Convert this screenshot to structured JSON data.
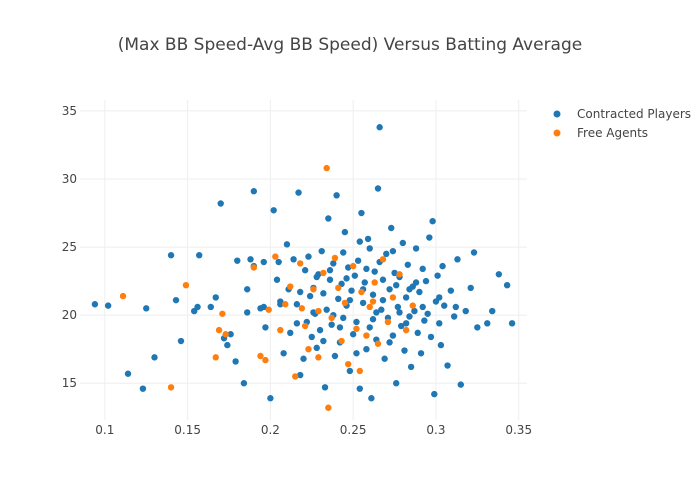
{
  "chart_data": {
    "type": "scatter",
    "title": "(Max BB Speed-Avg BB Speed) Versus Batting Average",
    "xlabel": "",
    "ylabel": "",
    "xlim": [
      0.085,
      0.355
    ],
    "ylim": [
      12.3,
      35.8
    ],
    "x_ticks": [
      0.1,
      0.15,
      0.2,
      0.25,
      0.3,
      0.35
    ],
    "x_tick_labels": [
      "0.1",
      "0.15",
      "0.2",
      "0.25",
      "0.3",
      "0.35"
    ],
    "y_ticks": [
      15,
      20,
      25,
      30,
      35
    ],
    "y_tick_labels": [
      "15",
      "20",
      "25",
      "30",
      "35"
    ],
    "grid": true,
    "legend_position": "top-right",
    "series": [
      {
        "name": "Contracted Players",
        "color": "#1f77b4",
        "points": [
          [
            0.094,
            20.8
          ],
          [
            0.102,
            20.7
          ],
          [
            0.114,
            15.7
          ],
          [
            0.123,
            14.6
          ],
          [
            0.125,
            20.5
          ],
          [
            0.13,
            16.9
          ],
          [
            0.14,
            24.4
          ],
          [
            0.143,
            21.1
          ],
          [
            0.146,
            18.1
          ],
          [
            0.154,
            20.3
          ],
          [
            0.156,
            20.6
          ],
          [
            0.157,
            24.4
          ],
          [
            0.164,
            20.6
          ],
          [
            0.167,
            21.3
          ],
          [
            0.17,
            28.2
          ],
          [
            0.172,
            18.3
          ],
          [
            0.174,
            17.8
          ],
          [
            0.176,
            18.6
          ],
          [
            0.179,
            16.6
          ],
          [
            0.18,
            24.0
          ],
          [
            0.184,
            15.0
          ],
          [
            0.186,
            20.2
          ],
          [
            0.188,
            24.1
          ],
          [
            0.19,
            29.1
          ],
          [
            0.19,
            23.6
          ],
          [
            0.194,
            20.5
          ],
          [
            0.196,
            23.9
          ],
          [
            0.197,
            19.1
          ],
          [
            0.2,
            13.9
          ],
          [
            0.202,
            27.7
          ],
          [
            0.204,
            22.6
          ],
          [
            0.205,
            23.9
          ],
          [
            0.206,
            20.8
          ],
          [
            0.208,
            17.2
          ],
          [
            0.21,
            25.2
          ],
          [
            0.211,
            21.9
          ],
          [
            0.212,
            18.7
          ],
          [
            0.214,
            24.1
          ],
          [
            0.216,
            20.8
          ],
          [
            0.217,
            29.0
          ],
          [
            0.218,
            15.6
          ],
          [
            0.22,
            16.8
          ],
          [
            0.221,
            23.3
          ],
          [
            0.222,
            19.5
          ],
          [
            0.223,
            24.3
          ],
          [
            0.224,
            21.4
          ],
          [
            0.225,
            18.4
          ],
          [
            0.226,
            22.0
          ],
          [
            0.227,
            20.1
          ],
          [
            0.228,
            17.6
          ],
          [
            0.229,
            23.0
          ],
          [
            0.23,
            18.9
          ],
          [
            0.231,
            24.7
          ],
          [
            0.232,
            21.6
          ],
          [
            0.233,
            14.7
          ],
          [
            0.234,
            20.4
          ],
          [
            0.235,
            27.1
          ],
          [
            0.236,
            22.6
          ],
          [
            0.237,
            19.3
          ],
          [
            0.238,
            23.8
          ],
          [
            0.239,
            17.0
          ],
          [
            0.24,
            28.8
          ],
          [
            0.241,
            21.2
          ],
          [
            0.242,
            18.0
          ],
          [
            0.243,
            22.3
          ],
          [
            0.244,
            19.8
          ],
          [
            0.245,
            26.1
          ],
          [
            0.246,
            20.7
          ],
          [
            0.247,
            23.5
          ],
          [
            0.248,
            15.9
          ],
          [
            0.249,
            21.8
          ],
          [
            0.25,
            18.6
          ],
          [
            0.251,
            22.9
          ],
          [
            0.252,
            19.5
          ],
          [
            0.253,
            24.0
          ],
          [
            0.254,
            14.6
          ],
          [
            0.255,
            27.5
          ],
          [
            0.256,
            20.9
          ],
          [
            0.257,
            22.4
          ],
          [
            0.258,
            17.5
          ],
          [
            0.259,
            25.6
          ],
          [
            0.26,
            19.1
          ],
          [
            0.261,
            13.9
          ],
          [
            0.262,
            21.5
          ],
          [
            0.263,
            23.2
          ],
          [
            0.264,
            18.2
          ],
          [
            0.265,
            29.3
          ],
          [
            0.266,
            33.8
          ],
          [
            0.267,
            20.4
          ],
          [
            0.268,
            22.6
          ],
          [
            0.269,
            16.8
          ],
          [
            0.27,
            24.5
          ],
          [
            0.271,
            19.8
          ],
          [
            0.272,
            21.9
          ],
          [
            0.273,
            26.4
          ],
          [
            0.274,
            18.5
          ],
          [
            0.275,
            23.1
          ],
          [
            0.276,
            15.0
          ],
          [
            0.277,
            20.6
          ],
          [
            0.278,
            22.8
          ],
          [
            0.279,
            19.2
          ],
          [
            0.28,
            25.3
          ],
          [
            0.281,
            17.4
          ],
          [
            0.282,
            21.3
          ],
          [
            0.283,
            23.7
          ],
          [
            0.284,
            19.9
          ],
          [
            0.285,
            16.2
          ],
          [
            0.286,
            22.1
          ],
          [
            0.287,
            20.3
          ],
          [
            0.288,
            24.9
          ],
          [
            0.289,
            18.7
          ],
          [
            0.29,
            21.7
          ],
          [
            0.291,
            17.2
          ],
          [
            0.292,
            23.4
          ],
          [
            0.293,
            19.6
          ],
          [
            0.294,
            22.5
          ],
          [
            0.295,
            20.1
          ],
          [
            0.296,
            25.7
          ],
          [
            0.297,
            18.4
          ],
          [
            0.298,
            26.9
          ],
          [
            0.299,
            14.2
          ],
          [
            0.3,
            21.0
          ],
          [
            0.301,
            22.9
          ],
          [
            0.302,
            19.4
          ],
          [
            0.303,
            17.8
          ],
          [
            0.304,
            23.6
          ],
          [
            0.305,
            20.7
          ],
          [
            0.307,
            16.3
          ],
          [
            0.309,
            21.8
          ],
          [
            0.311,
            19.9
          ],
          [
            0.313,
            24.1
          ],
          [
            0.315,
            14.9
          ],
          [
            0.318,
            20.3
          ],
          [
            0.321,
            22.0
          ],
          [
            0.323,
            24.6
          ],
          [
            0.325,
            19.1
          ],
          [
            0.331,
            19.4
          ],
          [
            0.334,
            20.3
          ],
          [
            0.338,
            23.0
          ],
          [
            0.343,
            22.2
          ],
          [
            0.346,
            19.4
          ],
          [
            0.26,
            24.9
          ],
          [
            0.248,
            21.1
          ],
          [
            0.238,
            20.0
          ],
          [
            0.228,
            22.8
          ],
          [
            0.218,
            21.7
          ],
          [
            0.258,
            23.4
          ],
          [
            0.268,
            21.1
          ],
          [
            0.278,
            20.2
          ],
          [
            0.288,
            22.4
          ],
          [
            0.252,
            17.2
          ],
          [
            0.242,
            19.1
          ],
          [
            0.232,
            18.1
          ],
          [
            0.262,
            19.7
          ],
          [
            0.272,
            18.0
          ],
          [
            0.282,
            19.4
          ],
          [
            0.246,
            22.7
          ],
          [
            0.236,
            23.3
          ],
          [
            0.256,
            21.9
          ],
          [
            0.266,
            23.9
          ],
          [
            0.276,
            22.2
          ],
          [
            0.226,
            20.2
          ],
          [
            0.216,
            19.4
          ],
          [
            0.206,
            21.0
          ],
          [
            0.196,
            20.6
          ],
          [
            0.186,
            21.9
          ],
          [
            0.292,
            20.6
          ],
          [
            0.302,
            21.3
          ],
          [
            0.312,
            20.6
          ],
          [
            0.244,
            24.6
          ],
          [
            0.254,
            25.4
          ],
          [
            0.264,
            20.2
          ],
          [
            0.274,
            24.7
          ],
          [
            0.284,
            21.9
          ]
        ]
      },
      {
        "name": "Free Agents",
        "color": "#ff7f0e",
        "points": [
          [
            0.111,
            21.4
          ],
          [
            0.14,
            14.7
          ],
          [
            0.149,
            22.2
          ],
          [
            0.167,
            16.9
          ],
          [
            0.169,
            18.9
          ],
          [
            0.171,
            20.1
          ],
          [
            0.173,
            18.6
          ],
          [
            0.19,
            23.5
          ],
          [
            0.194,
            17.0
          ],
          [
            0.197,
            16.7
          ],
          [
            0.199,
            20.4
          ],
          [
            0.203,
            24.3
          ],
          [
            0.206,
            18.9
          ],
          [
            0.209,
            20.8
          ],
          [
            0.212,
            22.1
          ],
          [
            0.215,
            15.5
          ],
          [
            0.218,
            23.8
          ],
          [
            0.221,
            19.2
          ],
          [
            0.223,
            17.5
          ],
          [
            0.226,
            21.9
          ],
          [
            0.229,
            20.3
          ],
          [
            0.232,
            23.1
          ],
          [
            0.234,
            30.8
          ],
          [
            0.235,
            13.2
          ],
          [
            0.237,
            19.8
          ],
          [
            0.239,
            24.2
          ],
          [
            0.241,
            22.0
          ],
          [
            0.243,
            18.1
          ],
          [
            0.245,
            20.9
          ],
          [
            0.247,
            16.4
          ],
          [
            0.25,
            23.6
          ],
          [
            0.252,
            19.0
          ],
          [
            0.255,
            21.7
          ],
          [
            0.258,
            18.5
          ],
          [
            0.26,
            20.6
          ],
          [
            0.263,
            22.4
          ],
          [
            0.265,
            17.9
          ],
          [
            0.268,
            24.1
          ],
          [
            0.271,
            19.5
          ],
          [
            0.274,
            21.3
          ],
          [
            0.278,
            23.0
          ],
          [
            0.282,
            18.9
          ],
          [
            0.286,
            20.7
          ],
          [
            0.219,
            20.5
          ],
          [
            0.229,
            16.9
          ],
          [
            0.254,
            15.9
          ],
          [
            0.262,
            21.0
          ]
        ]
      }
    ]
  }
}
